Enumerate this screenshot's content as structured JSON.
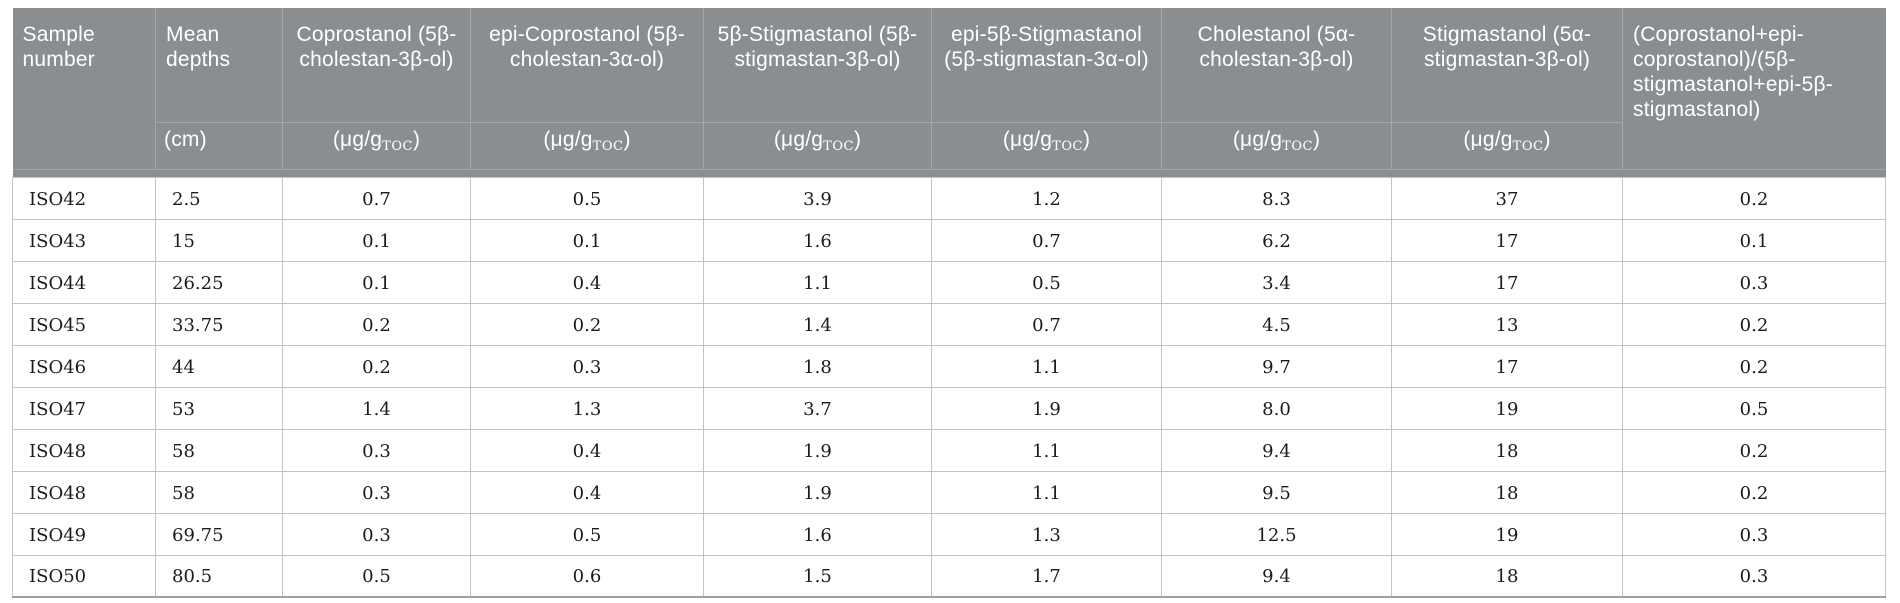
{
  "colors": {
    "header_bg": "#8a8e91",
    "header_text": "#ffffff",
    "header_line": "#a3a7aa",
    "body_line": "#c2c5c7",
    "body_text": "#1b1b1b",
    "table_edge": "#9ba0a3",
    "page_bg": "#ffffff"
  },
  "table": {
    "header": {
      "columns": [
        {
          "key": "sample-number",
          "title": "Sample number",
          "align": "left",
          "unit_pre": null,
          "unit_sub": null,
          "unit_post": null,
          "unit_align": null
        },
        {
          "key": "mean-depths",
          "title": "Mean depths",
          "align": "left",
          "unit_pre": "(cm)",
          "unit_sub": "",
          "unit_post": "",
          "unit_align": "left"
        },
        {
          "key": "coprostanol",
          "title": "Coprostanol (5β-cholestan-3β-ol)",
          "align": "center",
          "unit_pre": "(μg/g",
          "unit_sub": "TOC",
          "unit_post": ")",
          "unit_align": "center"
        },
        {
          "key": "epi-coprostanol",
          "title": "epi-Coprostanol (5β-cholestan-3α-ol)",
          "align": "center",
          "unit_pre": "(μg/g",
          "unit_sub": "TOC",
          "unit_post": ")",
          "unit_align": "center"
        },
        {
          "key": "5b-stigmastanol",
          "title": "5β-Stigmastanol (5β-stigmastan-3β-ol)",
          "align": "center",
          "unit_pre": "(μg/g",
          "unit_sub": "TOC",
          "unit_post": ")",
          "unit_align": "center"
        },
        {
          "key": "epi-5b-stigmastanol",
          "title": "epi-5β-Stigmastanol (5β-stigmastan-3α-ol)",
          "align": "center",
          "unit_pre": "(μg/g",
          "unit_sub": "TOC",
          "unit_post": ")",
          "unit_align": "center"
        },
        {
          "key": "cholestanol",
          "title": "Cholestanol (5α-cholestan-3β-ol)",
          "align": "center",
          "unit_pre": "(μg/g",
          "unit_sub": "TOC",
          "unit_post": ")",
          "unit_align": "center"
        },
        {
          "key": "stigmastanol",
          "title": "Stigmastanol (5α-stigmastan-3β-ol)",
          "align": "center",
          "unit_pre": "(μg/g",
          "unit_sub": "TOC",
          "unit_post": ")",
          "unit_align": "center"
        },
        {
          "key": "coprostanol-ratio",
          "title": "(Coprostanol+epi-coprostanol)/(5β-stigmastanol+epi-5β-stigmastanol)",
          "align": "left",
          "unit_pre": null,
          "unit_sub": null,
          "unit_post": null,
          "unit_align": null
        }
      ]
    },
    "rows": [
      [
        "ISO42",
        "2.5",
        "0.7",
        "0.5",
        "3.9",
        "1.2",
        "8.3",
        "37",
        "0.2"
      ],
      [
        "ISO43",
        "15",
        "0.1",
        "0.1",
        "1.6",
        "0.7",
        "6.2",
        "17",
        "0.1"
      ],
      [
        "ISO44",
        "26.25",
        "0.1",
        "0.4",
        "1.1",
        "0.5",
        "3.4",
        "17",
        "0.3"
      ],
      [
        "ISO45",
        "33.75",
        "0.2",
        "0.2",
        "1.4",
        "0.7",
        "4.5",
        "13",
        "0.2"
      ],
      [
        "ISO46",
        "44",
        "0.2",
        "0.3",
        "1.8",
        "1.1",
        "9.7",
        "17",
        "0.2"
      ],
      [
        "ISO47",
        "53",
        "1.4",
        "1.3",
        "3.7",
        "1.9",
        "8.0",
        "19",
        "0.5"
      ],
      [
        "ISO48",
        "58",
        "0.3",
        "0.4",
        "1.9",
        "1.1",
        "9.4",
        "18",
        "0.2"
      ],
      [
        "ISO48",
        "58",
        "0.3",
        "0.4",
        "1.9",
        "1.1",
        "9.5",
        "18",
        "0.2"
      ],
      [
        "ISO49",
        "69.75",
        "0.3",
        "0.5",
        "1.6",
        "1.3",
        "12.5",
        "19",
        "0.3"
      ],
      [
        "ISO50",
        "80.5",
        "0.5",
        "0.6",
        "1.5",
        "1.7",
        "9.4",
        "18",
        "0.3"
      ]
    ]
  }
}
